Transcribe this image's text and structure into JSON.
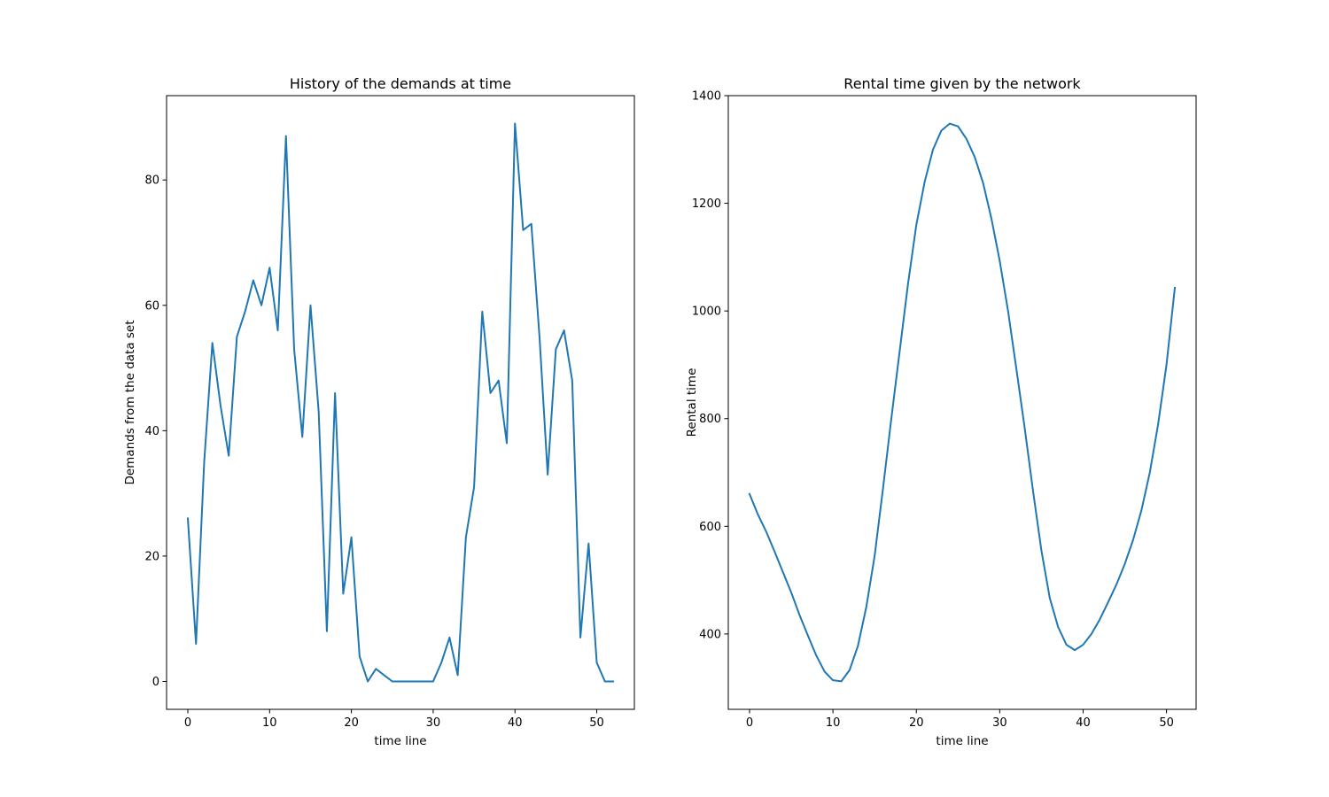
{
  "chart_data": [
    {
      "type": "line",
      "title": "History of the demands at time",
      "xlabel": "time line",
      "ylabel": "Demands from the data set",
      "xlim": [
        -2.6,
        54.6
      ],
      "ylim": [
        -4.45,
        93.45
      ],
      "xticks": [
        0,
        10,
        20,
        30,
        40,
        50
      ],
      "yticks": [
        0,
        20,
        40,
        60,
        80
      ],
      "grid": false,
      "color": "#1f77b4",
      "x": [
        0,
        1,
        2,
        3,
        4,
        5,
        6,
        7,
        8,
        9,
        10,
        11,
        12,
        13,
        14,
        15,
        16,
        17,
        18,
        19,
        20,
        21,
        22,
        23,
        24,
        25,
        26,
        27,
        28,
        29,
        30,
        31,
        32,
        33,
        34,
        35,
        36,
        37,
        38,
        39,
        40,
        41,
        42,
        43,
        44,
        45,
        46,
        47,
        48,
        49,
        50,
        51,
        52
      ],
      "values": [
        26,
        6,
        35,
        54,
        44,
        36,
        55,
        59,
        64,
        60,
        66,
        56,
        87,
        53,
        39,
        60,
        43,
        8,
        46,
        14,
        23,
        4,
        0,
        2,
        1,
        0,
        0,
        0,
        0,
        0,
        0,
        3,
        7,
        1,
        23,
        31,
        59,
        46,
        48,
        38,
        89,
        72,
        73,
        55,
        33,
        53,
        56,
        48,
        7,
        22,
        3,
        0,
        0
      ]
    },
    {
      "type": "line",
      "title": "Rental time given by the network",
      "xlabel": "time line",
      "ylabel": "Rental time",
      "xlim": [
        -2.55,
        53.55
      ],
      "ylim": [
        260,
        1400
      ],
      "xticks": [
        0,
        10,
        20,
        30,
        40,
        50
      ],
      "yticks": [
        400,
        600,
        800,
        1000,
        1200,
        1400
      ],
      "grid": false,
      "color": "#1f77b4",
      "x": [
        0,
        1,
        2,
        3,
        4,
        5,
        6,
        7,
        8,
        9,
        10,
        11,
        12,
        13,
        14,
        15,
        16,
        17,
        18,
        19,
        20,
        21,
        22,
        23,
        24,
        25,
        26,
        27,
        28,
        29,
        30,
        31,
        32,
        33,
        34,
        35,
        36,
        37,
        38,
        39,
        40,
        41,
        42,
        43,
        44,
        45,
        46,
        47,
        48,
        49,
        50,
        51
      ],
      "values": [
        660,
        622,
        590,
        553,
        515,
        477,
        435,
        397,
        360,
        330,
        314,
        312,
        333,
        378,
        450,
        545,
        670,
        800,
        925,
        1050,
        1160,
        1240,
        1300,
        1335,
        1348,
        1343,
        1320,
        1286,
        1238,
        1172,
        1093,
        1000,
        892,
        782,
        665,
        555,
        467,
        413,
        380,
        370,
        380,
        400,
        427,
        459,
        492,
        530,
        575,
        630,
        700,
        790,
        900,
        1043
      ]
    }
  ]
}
